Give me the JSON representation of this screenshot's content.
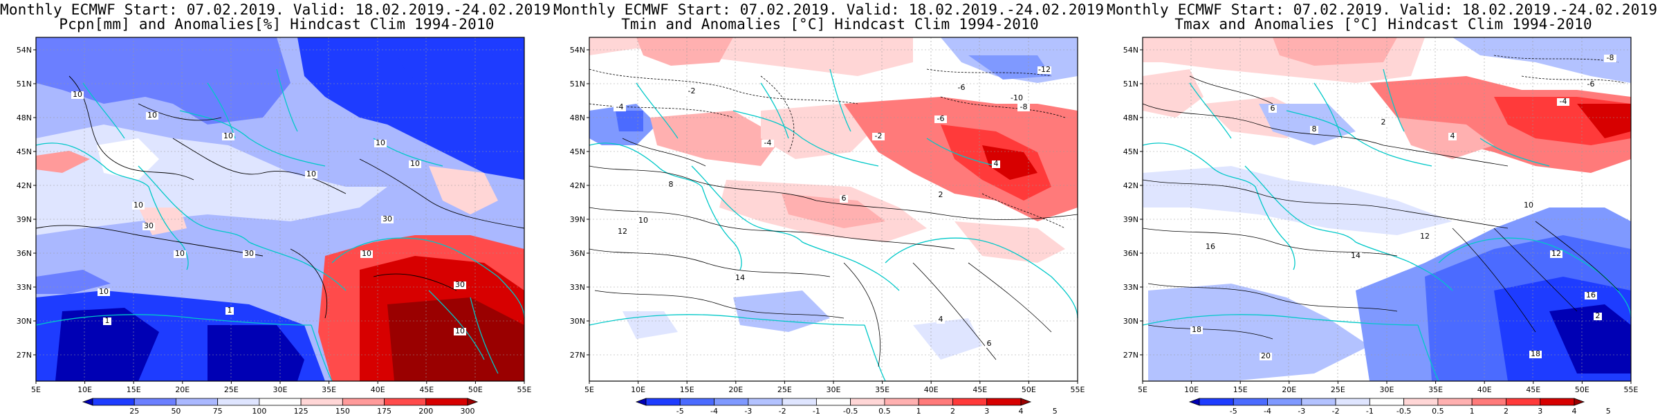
{
  "panels": [
    {
      "title_line1": "Monthly ECMWF Start: 07.02.2019. Valid: 18.02.2019.-24.02.2019.",
      "title_line2": "Pcpn[mm] and Anomalies[%] Hindcast Clim 1994-2010",
      "colorbar": {
        "labels": [
          "25",
          "50",
          "75",
          "100",
          "125",
          "150",
          "175",
          "200",
          "300"
        ],
        "colors": [
          "#0000b4",
          "#1e3cff",
          "#6b7fff",
          "#aab8ff",
          "#dfe5ff",
          "#ffffff",
          "#ffd6d6",
          "#ff9a9a",
          "#ff4b4b",
          "#d70000",
          "#9a0000"
        ]
      },
      "contour_labels": [
        "10",
        "10",
        "10",
        "10",
        "10",
        "10",
        "10",
        "10",
        "30",
        "30",
        "30",
        "10",
        "10",
        "1",
        "1",
        "30",
        "10"
      ]
    },
    {
      "title_line1": "Monthly ECMWF Start: 07.02.2019. Valid: 18.02.2019.-24.02.2019.",
      "title_line2": "Tmin and Anomalies [°C] Hindcast Clim 1994-2010",
      "colorbar": {
        "labels": [
          "-5",
          "-4",
          "-3",
          "-2",
          "-1",
          "-0.5",
          "0.5",
          "1",
          "2",
          "3",
          "4",
          "5"
        ],
        "colors": [
          "#0000b4",
          "#1e3cff",
          "#4b6bff",
          "#7f99ff",
          "#b3c2ff",
          "#dfe5ff",
          "#ffffff",
          "#ffd6d6",
          "#ffb0b0",
          "#ff7a7a",
          "#ff3a3a",
          "#d70000",
          "#9a0000"
        ]
      },
      "contour_labels": [
        "-12",
        "-10",
        "-8",
        "-6",
        "-4",
        "-4",
        "-2",
        "2",
        "4",
        "6",
        "8",
        "10",
        "12",
        "14",
        "-6",
        "-2",
        "4",
        "6"
      ]
    },
    {
      "title_line1": "Monthly ECMWF Start: 07.02.2019. Valid: 18.02.2019.-24.02.2019.",
      "title_line2": "Tmax and Anomalies [°C] Hindcast Clim 1994-2010",
      "colorbar": {
        "labels": [
          "-5",
          "-4",
          "-3",
          "-2",
          "-1",
          "-0.5",
          "0.5",
          "1",
          "2",
          "3",
          "4",
          "5"
        ],
        "colors": [
          "#0000b4",
          "#1e3cff",
          "#4b6bff",
          "#7f99ff",
          "#b3c2ff",
          "#dfe5ff",
          "#ffffff",
          "#ffd6d6",
          "#ffb0b0",
          "#ff7a7a",
          "#ff3a3a",
          "#d70000",
          "#9a0000"
        ]
      },
      "contour_labels": [
        "-8",
        "-6",
        "-4",
        "2",
        "4",
        "6",
        "8",
        "10",
        "12",
        "14",
        "16",
        "18",
        "20",
        "16",
        "18",
        "12",
        "2"
      ]
    }
  ],
  "lat_labels": [
    "54N",
    "51N",
    "48N",
    "45N",
    "42N",
    "39N",
    "36N",
    "33N",
    "30N",
    "27N"
  ],
  "lon_labels": [
    "5E",
    "10E",
    "15E",
    "20E",
    "25E",
    "30E",
    "35E",
    "40E",
    "45E",
    "50E",
    "55E"
  ]
}
